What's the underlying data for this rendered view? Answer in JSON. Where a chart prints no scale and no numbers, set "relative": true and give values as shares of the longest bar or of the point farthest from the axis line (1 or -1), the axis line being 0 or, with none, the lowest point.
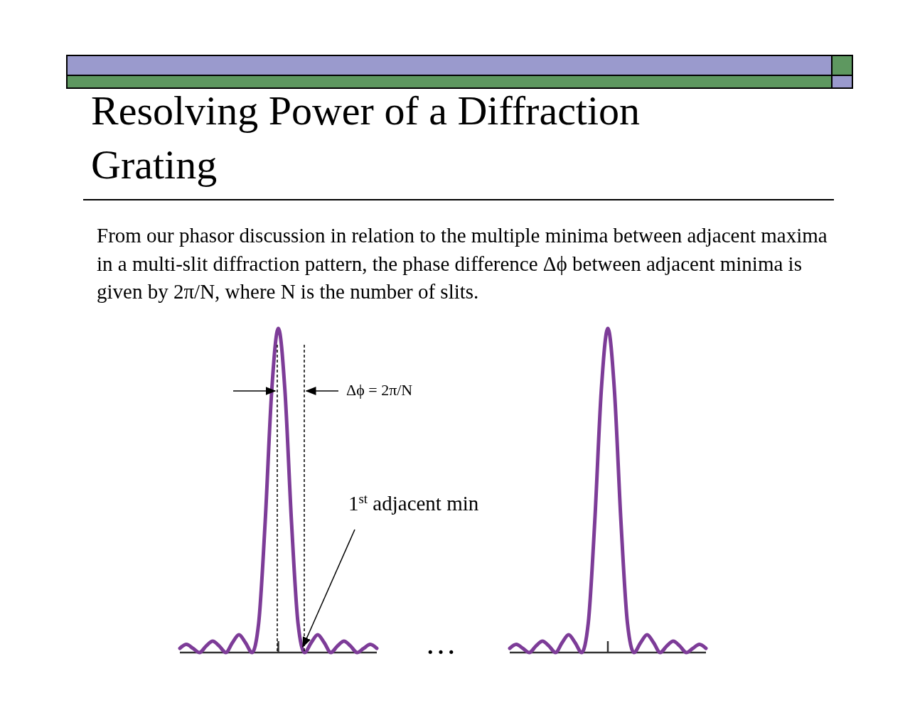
{
  "chart_data": [
    {
      "type": "line",
      "title": "Resolving Power of a Diffraction Grating",
      "subtitle": "From our phasor discussion in relation to the multiple minima between adjacent maxima in a multi-slit diffraction pattern, the phase difference Δϕ between adjacent minima is given by 2π/N, where N is the number of slits.",
      "annotations": [
        "Δϕ = 2π/N",
        "1$^{st}$ adjacent min",
        "…"
      ],
      "relative": true,
      "categories": [
        null,
        null,
        null,
        null,
        null,
        null,
        null,
        null,
        null,
        null,
        null,
        null,
        null,
        null,
        null,
        null,
        null,
        null,
        null,
        null,
        null,
        null,
        null,
        null,
        null,
        null,
        null,
        null,
        null,
        null,
        null
      ],
      "series": [
        {
          "color": "#7d3c98",
          "values": [
            0.013,
            0.025,
            0.013,
            0,
            0.02,
            0.035,
            0.02,
            0,
            0.03,
            0.055,
            0.03,
            0,
            0.09,
            0.405,
            0.81,
            1,
            0.81,
            0.405,
            0.09,
            0,
            0.03,
            0.055,
            0.03,
            0,
            0.02,
            0.035,
            0.02,
            0,
            0.013,
            0.025,
            0.013
          ]
        }
      ]
    },
    {
      "type": "line",
      "relative": true,
      "categories": [
        null,
        null,
        null,
        null,
        null,
        null,
        null,
        null,
        null,
        null,
        null,
        null,
        null,
        null,
        null,
        null,
        null,
        null,
        null,
        null,
        null,
        null,
        null,
        null,
        null,
        null,
        null,
        null,
        null,
        null,
        null
      ],
      "series": [
        {
          "color": "#7d3c98",
          "values": [
            0.013,
            0.025,
            0.013,
            0,
            0.02,
            0.035,
            0.02,
            0,
            0.03,
            0.055,
            0.03,
            0,
            0.09,
            0.405,
            0.81,
            1,
            0.81,
            0.405,
            0.09,
            0,
            0.03,
            0.055,
            0.03,
            0,
            0.02,
            0.035,
            0.02,
            0,
            0.013,
            0.025,
            0.013
          ]
        }
      ]
    }
  ]
}
